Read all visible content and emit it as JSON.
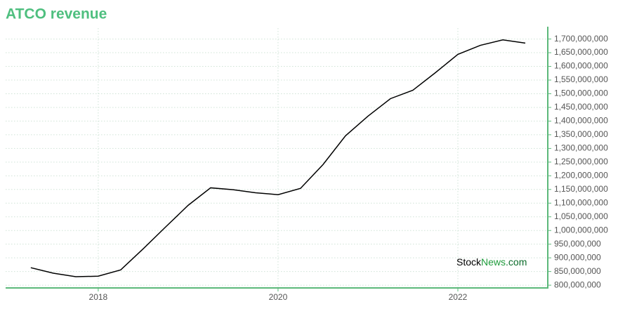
{
  "chart_data": {
    "type": "line",
    "title": "ATCO revenue",
    "watermark": [
      "Stock",
      "News",
      ".com"
    ],
    "x": [
      2017.25,
      2017.5,
      2017.75,
      2018,
      2018.25,
      2018.5,
      2018.75,
      2019,
      2019.25,
      2019.5,
      2019.75,
      2020,
      2020.25,
      2020.5,
      2020.75,
      2021,
      2021.25,
      2021.5,
      2021.75,
      2022,
      2022.25,
      2022.5,
      2022.75
    ],
    "series": [
      {
        "name": "Revenue",
        "color": "#000000",
        "values": [
          864000000,
          844000000,
          831000000,
          833000000,
          856000000,
          933000000,
          1013000000,
          1092000000,
          1156000000,
          1149000000,
          1138000000,
          1131000000,
          1154000000,
          1241000000,
          1346000000,
          1418000000,
          1482000000,
          1513000000,
          1577000000,
          1644000000,
          1677000000,
          1697000000,
          1685000000
        ]
      }
    ],
    "xlim": [
      2016.97,
      2023
    ],
    "xticks": [
      2018,
      2020,
      2022
    ],
    "ylim": [
      790000000,
      1740000000
    ],
    "yticks": [
      {
        "value": 800000000,
        "label": "800,000,000"
      },
      {
        "value": 850000000,
        "label": "850,000,000"
      },
      {
        "value": 900000000,
        "label": "900,000,000"
      },
      {
        "value": 950000000,
        "label": "950,000,000"
      },
      {
        "value": 1000000000,
        "label": "1,000,000,000"
      },
      {
        "value": 1050000000,
        "label": "1,050,000,000"
      },
      {
        "value": 1100000000,
        "label": "1,100,000,000"
      },
      {
        "value": 1150000000,
        "label": "1,150,000,000"
      },
      {
        "value": 1200000000,
        "label": "1,200,000,000"
      },
      {
        "value": 1250000000,
        "label": "1,250,000,000"
      },
      {
        "value": 1300000000,
        "label": "1,300,000,000"
      },
      {
        "value": 1350000000,
        "label": "1,350,000,000"
      },
      {
        "value": 1400000000,
        "label": "1,400,000,000"
      },
      {
        "value": 1450000000,
        "label": "1,450,000,000"
      },
      {
        "value": 1500000000,
        "label": "1,500,000,000"
      },
      {
        "value": 1550000000,
        "label": "1,550,000,000"
      },
      {
        "value": 1600000000,
        "label": "1,600,000,000"
      },
      {
        "value": 1650000000,
        "label": "1,650,000,000"
      },
      {
        "value": 1700000000,
        "label": "1,700,000,000"
      }
    ],
    "grid": true
  }
}
